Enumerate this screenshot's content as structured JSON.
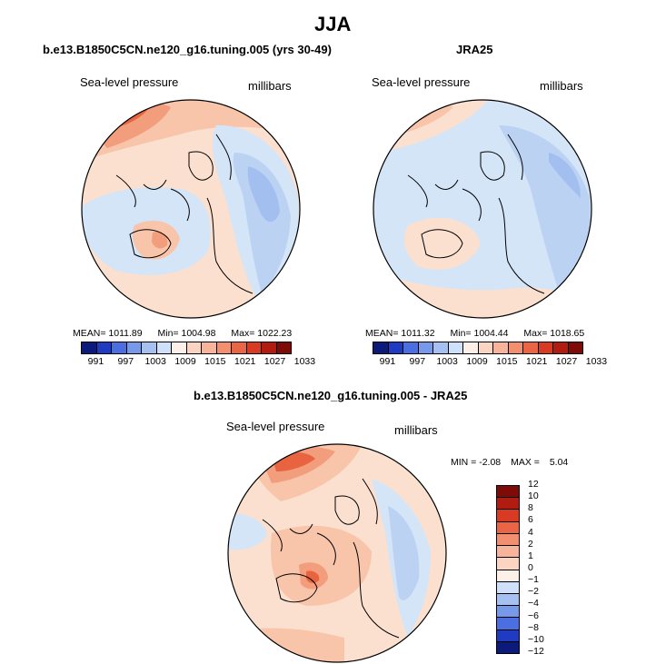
{
  "title": "JJA",
  "panels": {
    "model": {
      "header": "b.e13.B1850C5CN.ne120_g16.tuning.005 (yrs 30-49)",
      "field_label": "Sea-level pressure",
      "units_label": "millibars",
      "stats": {
        "mean_label": "MEAN=",
        "mean": "1011.89",
        "min_label": "Min=",
        "min": "1004.98",
        "max_label": "Max=",
        "max": "1022.23"
      }
    },
    "obs": {
      "header": "JRA25",
      "field_label": "Sea-level pressure",
      "units_label": "millibars",
      "stats": {
        "mean_label": "MEAN=",
        "mean": "1011.32",
        "min_label": "Min=",
        "min": "1004.44",
        "max_label": "Max=",
        "max": "1018.65"
      }
    },
    "diff": {
      "header": "b.e13.B1850C5CN.ne120_g16.tuning.005 - JRA25",
      "field_label": "Sea-level pressure",
      "units_label": "millibars",
      "stats": {
        "min_label": "MIN =",
        "min": "-2.08",
        "max_label": "MAX =",
        "max": "5.04"
      }
    }
  },
  "abs_colorbar": {
    "colors": [
      "#0c1a7c",
      "#1f3cc0",
      "#4b6fe0",
      "#7799ea",
      "#a6c0f2",
      "#cfe0fa",
      "#fdf0e8",
      "#fbd5c2",
      "#f7b49a",
      "#f28f6e",
      "#ea6545",
      "#d93a24",
      "#b01c10",
      "#7e0b08"
    ],
    "ticks": [
      "991",
      "997",
      "1003",
      "1009",
      "1015",
      "1021",
      "1027",
      "1033"
    ]
  },
  "diff_colorbar": {
    "colors": [
      "#7e0b08",
      "#b01c10",
      "#d93a24",
      "#ea6545",
      "#f28f6e",
      "#f7b49a",
      "#fbd5c2",
      "#fdf0e8",
      "#cfe0fa",
      "#a6c0f2",
      "#7799ea",
      "#4b6fe0",
      "#1f3cc0",
      "#0c1a7c"
    ],
    "ticks": [
      "12",
      "10",
      "8",
      "6",
      "4",
      "2",
      "1",
      "0",
      "−1",
      "−2",
      "−4",
      "−6",
      "−8",
      "−10",
      "−12"
    ]
  },
  "colors": {
    "land_outline": "#000000",
    "base_blue": "#d4e5f8",
    "light_blue": "#bcd2f3",
    "mid_blue": "#a3bff0",
    "pale_orange": "#fbe0d0",
    "light_orange": "#f8c5ab",
    "orange": "#f29d7c",
    "red": "#e8633f"
  }
}
